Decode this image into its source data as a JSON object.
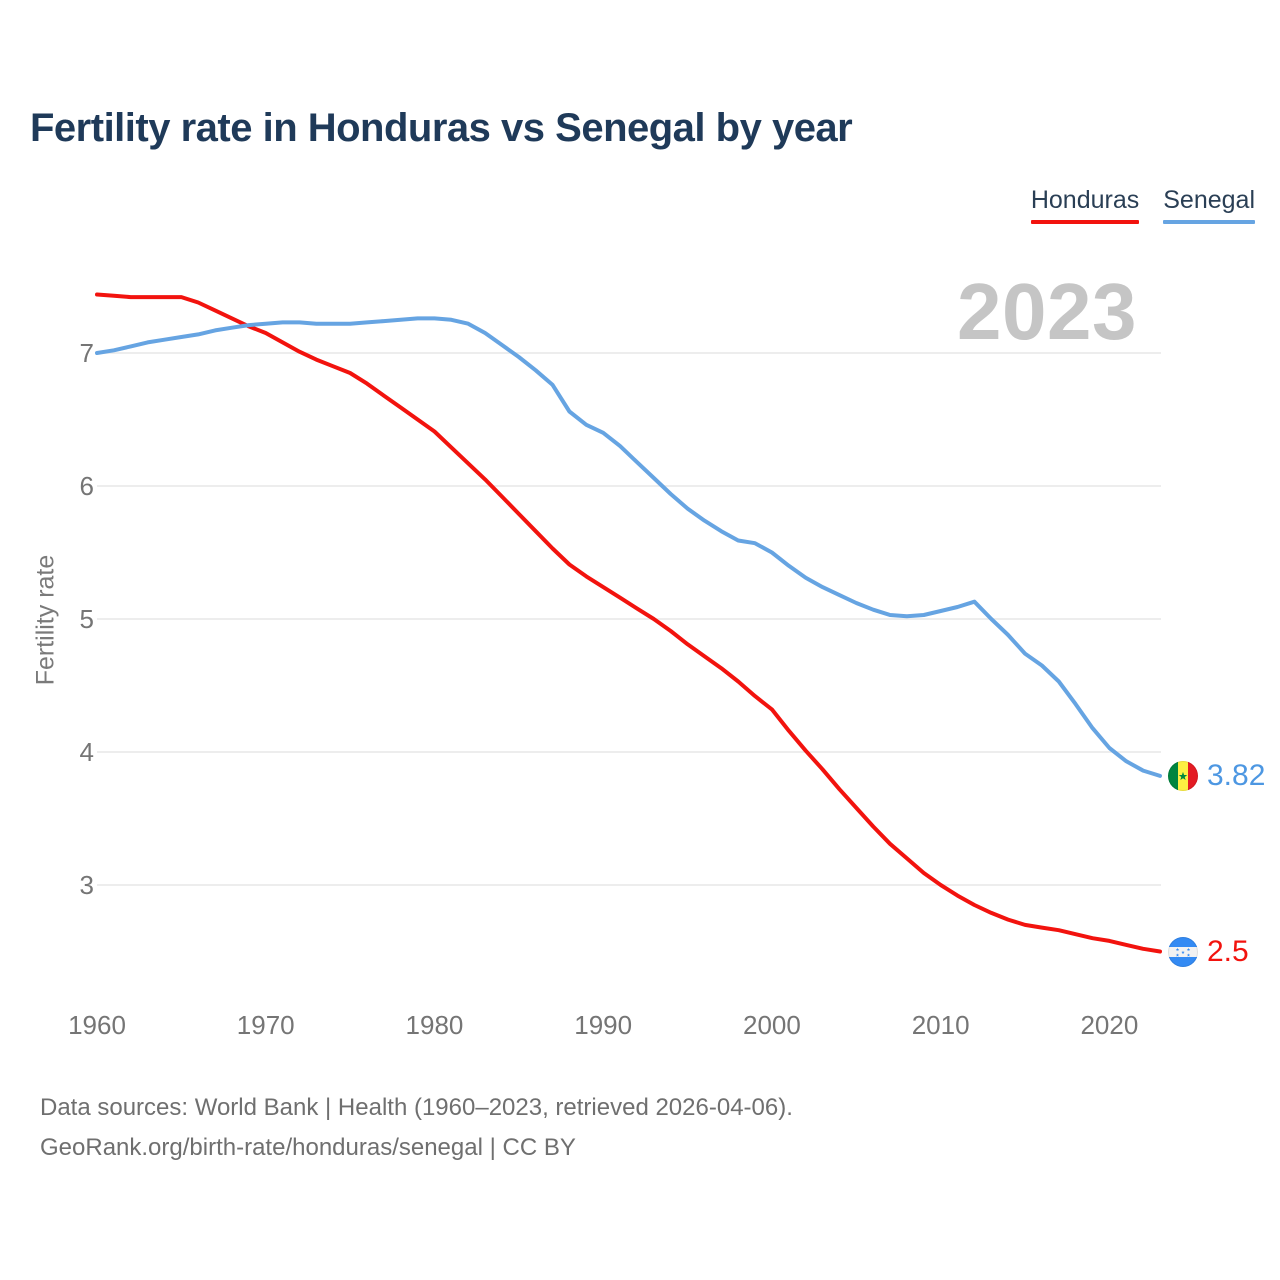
{
  "title": "Fertility rate in Honduras vs Senegal by year",
  "watermark": "2023",
  "legend": [
    {
      "label": "Honduras",
      "color": "#f2130e"
    },
    {
      "label": "Senegal",
      "color": "#66a4e2"
    }
  ],
  "y_axis": {
    "label": "Fertility rate",
    "ticks": [
      7,
      6,
      5,
      4,
      3
    ]
  },
  "x_axis": {
    "ticks": [
      1960,
      1970,
      1980,
      1990,
      2000,
      2010,
      2020
    ]
  },
  "end_labels": [
    {
      "country": "Senegal",
      "value": "3.82",
      "color": "#4d97e2",
      "flag_icon": "senegal-flag-icon"
    },
    {
      "country": "Honduras",
      "value": "2.5",
      "color": "#f2130e",
      "flag_icon": "honduras-flag-icon"
    }
  ],
  "footer": {
    "line1": "Data sources: World Bank | Health (1960–2023, retrieved 2026-04-06).",
    "line2": "GeoRank.org/birth-rate/honduras/senegal | CC BY"
  },
  "colors": {
    "grid": "#e7e7e7",
    "tick_text": "#757575",
    "title_text": "#1f3a59",
    "watermark_text": "#c5c5c5",
    "footer_text": "#6f6f6f"
  },
  "chart_data": {
    "type": "line",
    "title": "Fertility rate in Honduras vs Senegal by year",
    "xlabel": "",
    "ylabel": "Fertility rate",
    "xlim": [
      1960,
      2023
    ],
    "ylim": [
      2.2,
      7.6
    ],
    "grid": "horizontal",
    "legend_position": "top-right",
    "x": [
      1960,
      1961,
      1962,
      1963,
      1964,
      1965,
      1966,
      1967,
      1968,
      1969,
      1970,
      1971,
      1972,
      1973,
      1974,
      1975,
      1976,
      1977,
      1978,
      1979,
      1980,
      1981,
      1982,
      1983,
      1984,
      1985,
      1986,
      1987,
      1988,
      1989,
      1990,
      1991,
      1992,
      1993,
      1994,
      1995,
      1996,
      1997,
      1998,
      1999,
      2000,
      2001,
      2002,
      2003,
      2004,
      2005,
      2006,
      2007,
      2008,
      2009,
      2010,
      2011,
      2012,
      2013,
      2014,
      2015,
      2016,
      2017,
      2018,
      2019,
      2020,
      2021,
      2022,
      2023
    ],
    "series": [
      {
        "name": "Honduras",
        "color": "#f2130e",
        "final_value": 2.5,
        "values": [
          7.44,
          7.43,
          7.42,
          7.42,
          7.42,
          7.42,
          7.38,
          7.32,
          7.26,
          7.2,
          7.15,
          7.08,
          7.01,
          6.95,
          6.9,
          6.85,
          6.77,
          6.68,
          6.59,
          6.5,
          6.41,
          6.29,
          6.17,
          6.05,
          5.92,
          5.79,
          5.66,
          5.53,
          5.41,
          5.32,
          5.24,
          5.16,
          5.08,
          5.0,
          4.91,
          4.81,
          4.72,
          4.63,
          4.53,
          4.42,
          4.32,
          4.16,
          4.01,
          3.87,
          3.72,
          3.58,
          3.44,
          3.31,
          3.2,
          3.09,
          3.0,
          2.92,
          2.85,
          2.79,
          2.74,
          2.7,
          2.68,
          2.66,
          2.63,
          2.6,
          2.58,
          2.55,
          2.52,
          2.5
        ]
      },
      {
        "name": "Senegal",
        "color": "#66a4e2",
        "final_value": 3.82,
        "values": [
          7.0,
          7.02,
          7.05,
          7.08,
          7.1,
          7.12,
          7.14,
          7.17,
          7.19,
          7.21,
          7.22,
          7.23,
          7.23,
          7.22,
          7.22,
          7.22,
          7.23,
          7.24,
          7.25,
          7.26,
          7.26,
          7.25,
          7.22,
          7.15,
          7.06,
          6.97,
          6.87,
          6.76,
          6.56,
          6.46,
          6.4,
          6.3,
          6.18,
          6.06,
          5.94,
          5.83,
          5.74,
          5.66,
          5.59,
          5.57,
          5.5,
          5.4,
          5.31,
          5.24,
          5.18,
          5.12,
          5.07,
          5.03,
          5.02,
          5.03,
          5.06,
          5.09,
          5.13,
          5.0,
          4.88,
          4.74,
          4.65,
          4.53,
          4.36,
          4.18,
          4.03,
          3.93,
          3.86,
          3.82
        ]
      }
    ]
  }
}
